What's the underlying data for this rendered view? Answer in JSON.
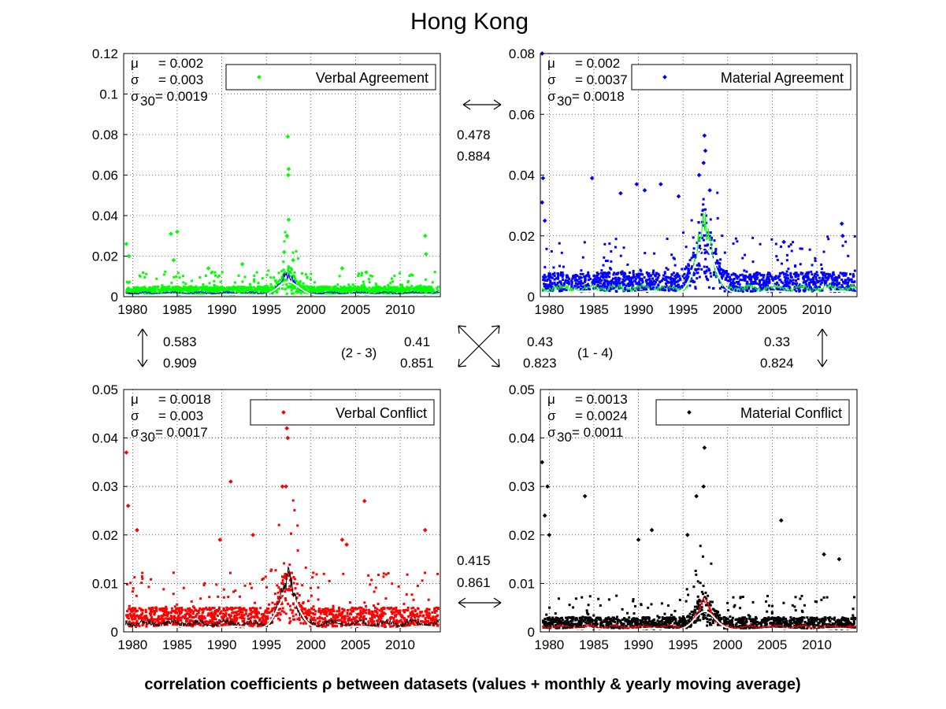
{
  "figure": {
    "title": "Hong Kong",
    "caption": "correlation coefficients ρ between datasets (values + monthly & yearly moving average)"
  },
  "correlations": [
    {
      "id": "c12",
      "values": [
        "0.478",
        "0.884"
      ]
    },
    {
      "id": "c13",
      "values": [
        "0.583",
        "0.909"
      ]
    },
    {
      "id": "c23",
      "label": "(2 - 3)",
      "values": [
        "0.41",
        "0.851"
      ]
    },
    {
      "id": "c14",
      "label": "(1 - 4)",
      "values": [
        "0.43",
        "0.823"
      ]
    },
    {
      "id": "c24",
      "values": [
        "0.33",
        "0.824"
      ]
    },
    {
      "id": "c34",
      "values": [
        "0.415",
        "0.861"
      ]
    }
  ],
  "chart_data": [
    {
      "type": "scatter",
      "legend": "Verbal Agreement",
      "legend_position": "top-right",
      "color": "#00ff00",
      "avg_color": "#0000ff",
      "stats": {
        "mu": "= 0.002",
        "sigma": "= 0.003",
        "sigma30": "= 0.0019"
      },
      "xlim": [
        1979,
        2014.5
      ],
      "ylim": [
        0,
        0.12
      ],
      "xticks": [
        "1980",
        "1985",
        "1990",
        "1995",
        "2000",
        "2005",
        "2010"
      ],
      "yticks": [
        "0",
        "0.02",
        "0.04",
        "0.06",
        "0.08",
        "0.1",
        "0.12"
      ],
      "grid": true,
      "base_level": 0.0025,
      "spikes": [
        [
          1979.3,
          0.026
        ],
        [
          1979.6,
          0.02
        ],
        [
          1984.3,
          0.031
        ],
        [
          1985.0,
          0.032
        ],
        [
          1984.6,
          0.018
        ],
        [
          1992.3,
          0.016
        ],
        [
          1997.4,
          0.079
        ],
        [
          1997.5,
          0.063
        ],
        [
          1997.45,
          0.06
        ],
        [
          1997.5,
          0.038
        ],
        [
          1997.3,
          0.03
        ],
        [
          2012.8,
          0.03
        ],
        [
          2012.9,
          0.021
        ],
        [
          1997.0,
          0.022
        ],
        [
          1998.0,
          0.018
        ],
        [
          1988.5,
          0.014
        ],
        [
          2003.5,
          0.014
        ],
        [
          2006.2,
          0.012
        ]
      ],
      "peak": 0.007
    },
    {
      "type": "scatter",
      "legend": "Material Agreement",
      "legend_position": "top-right",
      "color": "#0000ff",
      "avg_color": "#00ff00",
      "stats": {
        "mu": "= 0.002",
        "sigma": "= 0.0037",
        "sigma30": "= 0.0018"
      },
      "xlim": [
        1979,
        2014.5
      ],
      "ylim": [
        0,
        0.08
      ],
      "xticks": [
        "1980",
        "1985",
        "1990",
        "1995",
        "2000",
        "2005",
        "2010"
      ],
      "yticks": [
        "0",
        "0.02",
        "0.04",
        "0.06",
        "0.08"
      ],
      "grid": true,
      "base_level": 0.004,
      "spikes": [
        [
          1979.2,
          0.08
        ],
        [
          1979.3,
          0.039
        ],
        [
          1979.2,
          0.031
        ],
        [
          1979.5,
          0.025
        ],
        [
          1984.8,
          0.039
        ],
        [
          1989.8,
          0.037
        ],
        [
          1990.7,
          0.035
        ],
        [
          1992.5,
          0.037
        ],
        [
          1997.4,
          0.053
        ],
        [
          1997.5,
          0.048
        ],
        [
          1997.3,
          0.044
        ],
        [
          1996.8,
          0.04
        ],
        [
          1998.0,
          0.035
        ],
        [
          2006.3,
          0.018
        ],
        [
          2012.8,
          0.024
        ],
        [
          2012.9,
          0.02
        ],
        [
          1988.0,
          0.034
        ],
        [
          1994.5,
          0.033
        ]
      ],
      "peak": 0.016
    },
    {
      "type": "scatter",
      "legend": "Verbal Conflict",
      "legend_position": "top-right",
      "color": "#ff0000",
      "avg_color": "#000000",
      "stats": {
        "mu": "= 0.0018",
        "sigma": "= 0.003",
        "sigma30": "= 0.0017"
      },
      "xlim": [
        1979,
        2014.5
      ],
      "ylim": [
        0,
        0.05
      ],
      "xticks": [
        "1980",
        "1985",
        "1990",
        "1995",
        "2000",
        "2005",
        "2010"
      ],
      "yticks": [
        "0",
        "0.01",
        "0.02",
        "0.03",
        "0.04",
        "0.05"
      ],
      "grid": true,
      "base_level": 0.0025,
      "spikes": [
        [
          1979.3,
          0.037
        ],
        [
          1979.5,
          0.026
        ],
        [
          1980.5,
          0.021
        ],
        [
          1991.0,
          0.031
        ],
        [
          1997.3,
          0.042
        ],
        [
          1997.4,
          0.04
        ],
        [
          1997.2,
          0.03
        ],
        [
          1996.8,
          0.03
        ],
        [
          2006.0,
          0.027
        ],
        [
          2003.5,
          0.019
        ],
        [
          2012.8,
          0.021
        ],
        [
          1989.8,
          0.019
        ],
        [
          1993.5,
          0.02
        ],
        [
          2004.0,
          0.018
        ]
      ],
      "peak": 0.0075
    },
    {
      "type": "scatter",
      "legend": "Material Conflict",
      "legend_position": "top-right",
      "color": "#000000",
      "avg_color": "#ff0000",
      "stats": {
        "mu": "= 0.0013",
        "sigma": "= 0.0024",
        "sigma30": "= 0.0011"
      },
      "xlim": [
        1979,
        2014.5
      ],
      "ylim": [
        0,
        0.05
      ],
      "xticks": [
        "1980",
        "1985",
        "1990",
        "1995",
        "2000",
        "2005",
        "2010"
      ],
      "yticks": [
        "0",
        "0.01",
        "0.02",
        "0.03",
        "0.04",
        "0.05"
      ],
      "grid": true,
      "base_level": 0.0015,
      "spikes": [
        [
          1979.2,
          0.035
        ],
        [
          1979.8,
          0.03
        ],
        [
          1979.5,
          0.024
        ],
        [
          1980.0,
          0.02
        ],
        [
          1984.0,
          0.028
        ],
        [
          1997.4,
          0.038
        ],
        [
          1997.3,
          0.03
        ],
        [
          1996.5,
          0.028
        ],
        [
          2006.0,
          0.023
        ],
        [
          2010.8,
          0.016
        ],
        [
          2012.5,
          0.015
        ],
        [
          1990.0,
          0.019
        ],
        [
          1991.5,
          0.021
        ],
        [
          1995.5,
          0.02
        ]
      ],
      "peak": 0.004
    }
  ]
}
